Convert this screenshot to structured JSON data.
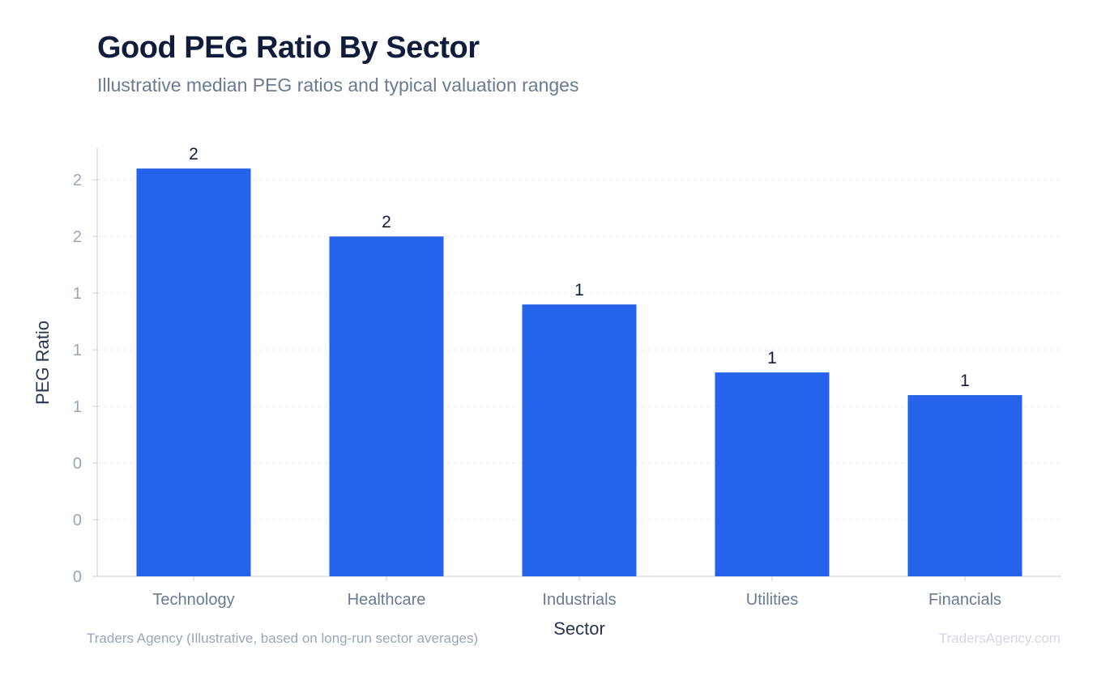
{
  "chart_data": {
    "type": "bar",
    "title": "Good PEG Ratio By Sector",
    "subtitle": "Illustrative median PEG ratios and typical valuation ranges",
    "xlabel": "Sector",
    "ylabel": "PEG Ratio",
    "categories": [
      "Technology",
      "Healthcare",
      "Industrials",
      "Utilities",
      "Financials"
    ],
    "values": [
      1.8,
      1.5,
      1.2,
      0.9,
      0.8
    ],
    "data_labels": [
      "2",
      "2",
      "1",
      "1",
      "1"
    ],
    "yticks": [
      0,
      0.25,
      0.5,
      0.75,
      1.0,
      1.25,
      1.5,
      1.75
    ],
    "ytick_labels": [
      "0",
      "0",
      "0",
      "1",
      "1",
      "1",
      "2",
      "2"
    ],
    "ylim": [
      0,
      1.89
    ],
    "grid": true,
    "bar_color": "#2563eb",
    "source": "Traders Agency (Illustrative, based on long-run sector averages)",
    "watermark": "TradersAgency.com"
  }
}
